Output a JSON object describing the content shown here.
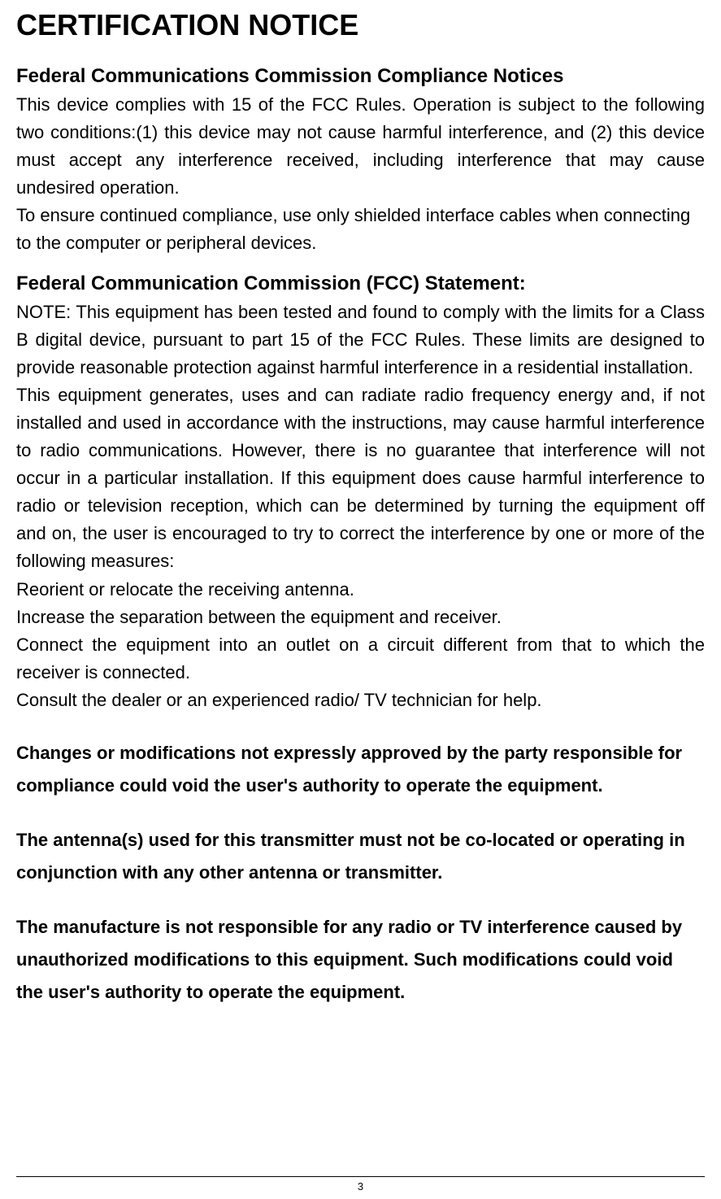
{
  "title": "CERTIFICATION NOTICE",
  "section1": {
    "heading": "Federal Communications Commission Compliance Notices",
    "para1": "This device complies with 15 of the FCC Rules. Operation is subject to the following two conditions:(1) this device may not cause harmful interference, and (2) this device must accept any interference received, including interference that may cause undesired operation.",
    "para2": " To ensure continued compliance, use only shielded interface cables when connecting to the computer or peripheral devices."
  },
  "section2": {
    "heading": "Federal Communication Commission (FCC) Statement:",
    "para1": "NOTE: This equipment has been tested and found to comply with the limits for a Class B digital device, pursuant to part 15 of the FCC Rules. These limits are designed to provide reasonable protection against harmful interference in a residential installation.",
    "para2": "This equipment generates, uses and can radiate radio frequency energy and, if not installed and used in accordance with the instructions, may cause harmful interference to radio communications. However, there is no guarantee that interference will not occur in a particular installation. If this equipment does cause harmful interference to radio or television reception, which can be determined by turning the equipment off and on, the user is encouraged to try to correct the interference by one or more of the following measures:",
    "item1": "Reorient or relocate the receiving antenna.",
    "item2": "Increase the separation between the equipment and receiver.",
    "item3": "Connect the equipment into an outlet on a circuit different from that to which the receiver is connected.",
    "item4": "Consult the dealer or an experienced radio/ TV technician for help."
  },
  "bold1": "Changes or modifications not expressly approved by the party responsible for compliance could void the user's authority to operate the equipment.",
  "bold2": "The antenna(s) used for this transmitter must not be co-located or operating in conjunction with any other antenna or transmitter.",
  "bold3": "The manufacture is not responsible for any radio or TV interference caused by unauthorized modifications to this equipment. Such modifications could void the user's authority to operate the equipment.",
  "page_number": "3",
  "colors": {
    "text": "#000000",
    "background": "#ffffff",
    "border": "#000000"
  },
  "typography": {
    "title_size": 36,
    "heading_size": 24,
    "body_size": 22,
    "footer_size": 13
  }
}
